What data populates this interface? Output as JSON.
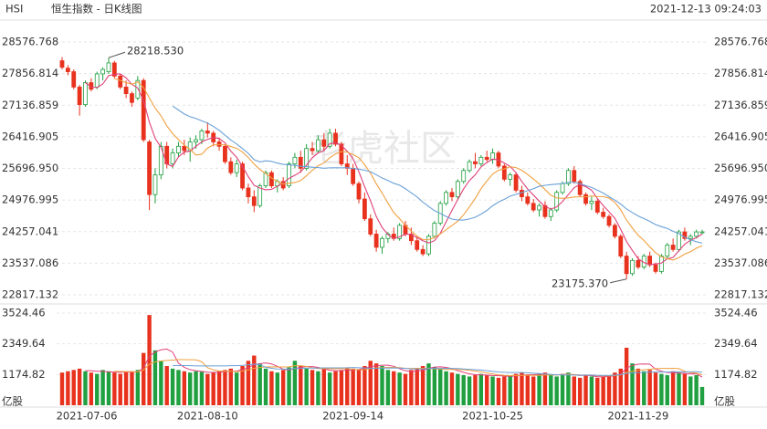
{
  "chart_data": {
    "type": "candlestick",
    "symbol": "HSI",
    "title": "恒生指数 - 日K线图",
    "timestamp": "2021-12-13 09:24:03",
    "watermark": "老虎社区",
    "volume_unit": "亿股",
    "up_color": "#20a040",
    "down_color": "#e8321e",
    "ma_periods": [
      5,
      10,
      20
    ],
    "ma_colors": [
      "#e0407a",
      "#f0a040",
      "#6aa0d8"
    ],
    "categories": [
      "2021-07-06",
      null,
      null,
      null,
      null,
      null,
      null,
      null,
      null,
      null,
      null,
      null,
      null,
      null,
      null,
      null,
      null,
      null,
      null,
      null,
      null,
      null,
      null,
      null,
      null,
      "2021-08-10",
      null,
      null,
      null,
      null,
      null,
      null,
      null,
      null,
      null,
      null,
      null,
      null,
      null,
      null,
      null,
      null,
      null,
      null,
      null,
      null,
      null,
      null,
      null,
      null,
      "2021-09-14",
      null,
      null,
      null,
      null,
      null,
      null,
      null,
      null,
      null,
      null,
      null,
      null,
      null,
      null,
      null,
      null,
      null,
      null,
      null,
      null,
      null,
      null,
      null,
      "2021-10-25",
      null,
      null,
      null,
      null,
      null,
      null,
      null,
      null,
      null,
      null,
      null,
      null,
      null,
      null,
      null,
      null,
      null,
      null,
      null,
      null,
      null,
      null,
      null,
      null,
      "2021-11-29",
      null,
      null,
      null,
      null,
      null,
      null,
      null,
      null,
      null,
      null,
      null
    ],
    "ohlc": [
      [
        28150,
        28230,
        27950,
        28000
      ],
      [
        27980,
        28050,
        27820,
        27900
      ],
      [
        27900,
        27950,
        27500,
        27550
      ],
      [
        27550,
        27600,
        26900,
        27150
      ],
      [
        27150,
        27700,
        27100,
        27650
      ],
      [
        27650,
        27750,
        27450,
        27500
      ],
      [
        27550,
        27900,
        27500,
        27850
      ],
      [
        27850,
        28000,
        27700,
        27950
      ],
      [
        27900,
        28218.53,
        27850,
        28100
      ],
      [
        28100,
        28150,
        27750,
        27800
      ],
      [
        27800,
        27850,
        27500,
        27550
      ],
      [
        27550,
        27700,
        27300,
        27400
      ],
      [
        27400,
        27450,
        27100,
        27200
      ],
      [
        27300,
        27800,
        27250,
        27700
      ],
      [
        27700,
        27750,
        26300,
        26350
      ],
      [
        26300,
        26350,
        24750,
        25100
      ],
      [
        25100,
        25700,
        24900,
        25550
      ],
      [
        25550,
        26300,
        25450,
        26200
      ],
      [
        26200,
        26300,
        25700,
        25800
      ],
      [
        25800,
        26150,
        25700,
        26050
      ],
      [
        26050,
        26300,
        25950,
        26200
      ],
      [
        26200,
        26350,
        26000,
        26100
      ],
      [
        26100,
        26400,
        25850,
        26300
      ],
      [
        26300,
        26450,
        26150,
        26350
      ],
      [
        26350,
        26600,
        26250,
        26550
      ],
      [
        26550,
        26750,
        26400,
        26500
      ],
      [
        26500,
        26550,
        26200,
        26300
      ],
      [
        26300,
        26400,
        26100,
        26200
      ],
      [
        26200,
        26250,
        25800,
        25850
      ],
      [
        25850,
        25950,
        25550,
        25600
      ],
      [
        25600,
        25900,
        25500,
        25800
      ],
      [
        25800,
        25850,
        25200,
        25250
      ],
      [
        25250,
        25350,
        24900,
        25050
      ],
      [
        25050,
        25200,
        24700,
        24850
      ],
      [
        24850,
        25350,
        24800,
        25300
      ],
      [
        25300,
        25650,
        25250,
        25600
      ],
      [
        25600,
        25650,
        25250,
        25300
      ],
      [
        25300,
        25450,
        25150,
        25400
      ],
      [
        25400,
        25500,
        25200,
        25250
      ],
      [
        25300,
        25850,
        25250,
        25800
      ],
      [
        25800,
        26050,
        25700,
        25950
      ],
      [
        25950,
        26100,
        25600,
        25700
      ],
      [
        25700,
        26250,
        25650,
        26150
      ],
      [
        26150,
        26300,
        26000,
        26100
      ],
      [
        26100,
        26450,
        26050,
        26350
      ],
      [
        26350,
        26500,
        26100,
        26200
      ],
      [
        26200,
        26600,
        26150,
        26500
      ],
      [
        26500,
        26600,
        26200,
        26250
      ],
      [
        26250,
        26300,
        25750,
        25800
      ],
      [
        25800,
        26000,
        25550,
        25700
      ],
      [
        25700,
        25800,
        25300,
        25350
      ],
      [
        25350,
        25400,
        24900,
        25000
      ],
      [
        25000,
        25150,
        24500,
        24550
      ],
      [
        24550,
        24650,
        24150,
        24200
      ],
      [
        24200,
        24300,
        23800,
        23900
      ],
      [
        23900,
        24150,
        23750,
        24100
      ],
      [
        24100,
        24250,
        24000,
        24200
      ],
      [
        24200,
        24350,
        24050,
        24100
      ],
      [
        24100,
        24450,
        24050,
        24400
      ],
      [
        24400,
        24500,
        24150,
        24200
      ],
      [
        24200,
        24350,
        23950,
        24050
      ],
      [
        24050,
        24150,
        23800,
        23850
      ],
      [
        23850,
        23950,
        23700,
        23750
      ],
      [
        23750,
        24200,
        23700,
        24150
      ],
      [
        24150,
        24500,
        24100,
        24450
      ],
      [
        24450,
        24950,
        24400,
        24900
      ],
      [
        24900,
        25200,
        24850,
        25150
      ],
      [
        25150,
        25250,
        24950,
        25050
      ],
      [
        25050,
        25450,
        25000,
        25400
      ],
      [
        25400,
        25700,
        25350,
        25650
      ],
      [
        25650,
        25900,
        25600,
        25850
      ],
      [
        25850,
        26050,
        25700,
        25800
      ],
      [
        25800,
        26000,
        25750,
        25950
      ],
      [
        25950,
        26100,
        25850,
        25900
      ],
      [
        25900,
        26150,
        25800,
        26050
      ],
      [
        26050,
        26100,
        25700,
        25750
      ],
      [
        25750,
        25800,
        25400,
        25450
      ],
      [
        25450,
        25600,
        25300,
        25550
      ],
      [
        25550,
        25600,
        25150,
        25200
      ],
      [
        25200,
        25300,
        24950,
        25050
      ],
      [
        25050,
        25150,
        24850,
        24900
      ],
      [
        24900,
        25000,
        24700,
        24750
      ],
      [
        24750,
        24900,
        24600,
        24850
      ],
      [
        24850,
        24950,
        24550,
        24600
      ],
      [
        24600,
        24800,
        24500,
        24750
      ],
      [
        24750,
        25200,
        24700,
        25150
      ],
      [
        25150,
        25400,
        25100,
        25350
      ],
      [
        25350,
        25700,
        25300,
        25650
      ],
      [
        25650,
        25750,
        25350,
        25400
      ],
      [
        25400,
        25450,
        25050,
        25100
      ],
      [
        25100,
        25150,
        24850,
        24900
      ],
      [
        24900,
        25050,
        24750,
        24950
      ],
      [
        24950,
        25000,
        24650,
        24700
      ],
      [
        24700,
        24800,
        24550,
        24600
      ],
      [
        24600,
        24650,
        24350,
        24400
      ],
      [
        24400,
        24450,
        24100,
        24150
      ],
      [
        24150,
        24200,
        23650,
        23700
      ],
      [
        23700,
        23800,
        23175.37,
        23300
      ],
      [
        23300,
        23650,
        23250,
        23600
      ],
      [
        23600,
        23700,
        23400,
        23450
      ],
      [
        23450,
        23750,
        23400,
        23700
      ],
      [
        23700,
        23800,
        23450,
        23500
      ],
      [
        23500,
        23550,
        23300,
        23350
      ],
      [
        23350,
        23750,
        23300,
        23700
      ],
      [
        23700,
        24000,
        23650,
        23950
      ],
      [
        23950,
        24100,
        23800,
        23850
      ],
      [
        23850,
        24300,
        23800,
        24250
      ],
      [
        24250,
        24350,
        24050,
        24100
      ],
      [
        24100,
        24200,
        23950,
        24150
      ],
      [
        24150,
        24300,
        24100,
        24250
      ],
      [
        24250,
        24300,
        24200,
        24250
      ]
    ],
    "volume": [
      1250,
      1300,
      1350,
      1400,
      1300,
      1250,
      1200,
      1350,
      1300,
      1250,
      1200,
      1280,
      1300,
      1350,
      2000,
      3450,
      2100,
      1700,
      1500,
      1400,
      1350,
      1300,
      1250,
      1300,
      1280,
      1200,
      1250,
      1300,
      1350,
      1400,
      1250,
      1500,
      1700,
      1900,
      1600,
      1400,
      1300,
      1250,
      1350,
      1450,
      1700,
      1500,
      1400,
      1350,
      1300,
      1400,
      1250,
      1300,
      1350,
      1450,
      1400,
      1350,
      1500,
      1700,
      1600,
      1500,
      1350,
      1300,
      1250,
      1200,
      1350,
      1400,
      1500,
      1600,
      1450,
      1400,
      1300,
      1250,
      1200,
      1150,
      1100,
      1150,
      1200,
      1150,
      1100,
      1050,
      1100,
      1150,
      1200,
      1250,
      1150,
      1100,
      1200,
      1250,
      1150,
      1100,
      1200,
      1250,
      1100,
      1050,
      1150,
      1100,
      1050,
      1100,
      1150,
      1250,
      1400,
      2200,
      1600,
      1400,
      1300,
      1350,
      1250,
      1200,
      1150,
      1300,
      1250,
      1200,
      1100,
      1150,
      700
    ],
    "ylim": [
      22817.132,
      28576.768
    ],
    "yticks": [
      28576.768,
      27856.814,
      27136.859,
      26416.905,
      {
        "value": 25696.95,
        "label": "25696.950"
      },
      24976.995,
      24257.041,
      23537.086,
      22817.132
    ],
    "y2lim": [
      0,
      3524.46
    ],
    "y2ticks": [
      3524.46,
      2349.64,
      1174.82
    ],
    "annotations": [
      {
        "value": 28218.53,
        "label": "28218.530"
      },
      {
        "value": 23175.37,
        "label": "23175.370"
      }
    ],
    "grid": true
  }
}
